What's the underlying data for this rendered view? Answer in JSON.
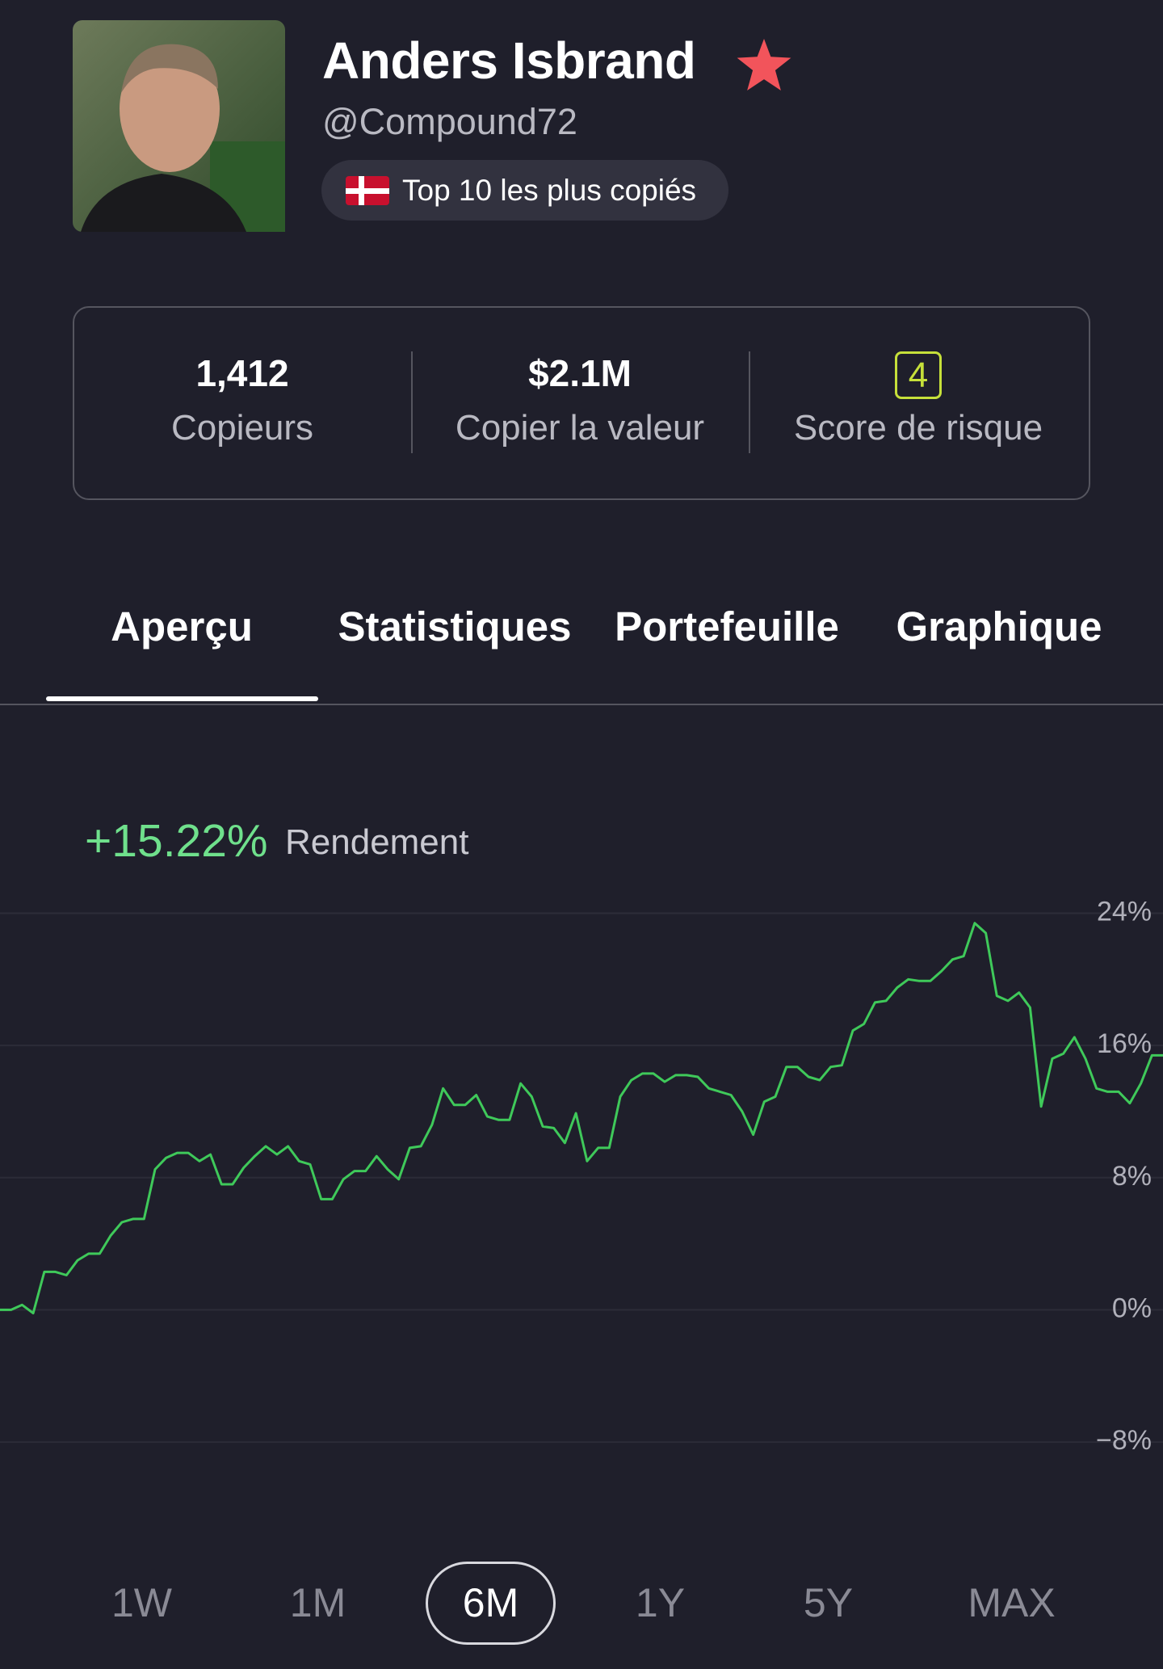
{
  "profile": {
    "name": "Anders Isbrand",
    "handle": "@Compound72",
    "badge": "Top 10 les plus copiés"
  },
  "stats": [
    {
      "value": "1,412",
      "label": "Copieurs"
    },
    {
      "value": "$2.1M",
      "label": "Copier la valeur"
    },
    {
      "value": "4",
      "label": "Score de risque"
    }
  ],
  "tabs": [
    "Aperçu",
    "Statistiques",
    "Portefeuille",
    "Graphique"
  ],
  "active_tab": 0,
  "chart_data": {
    "type": "line",
    "headline": "+15.22%",
    "headline_label": "Rendement",
    "ylim": [
      -10,
      25
    ],
    "yticks": [
      {
        "value": 24,
        "label": "24%"
      },
      {
        "value": 16,
        "label": "16%"
      },
      {
        "value": 8,
        "label": "8%"
      },
      {
        "value": 0,
        "label": "0%"
      },
      {
        "value": -8,
        "label": "−8%"
      }
    ],
    "grid": true,
    "series": [
      {
        "color": "#3fc95a",
        "values": [
          0,
          0,
          0.3,
          -0.2,
          2.3,
          2.3,
          2.1,
          3.0,
          3.4,
          3.4,
          4.5,
          5.3,
          5.5,
          5.5,
          8.5,
          9.2,
          9.5,
          9.5,
          9.0,
          9.4,
          7.6,
          7.6,
          8.6,
          9.3,
          9.9,
          9.4,
          9.9,
          9.0,
          8.8,
          6.7,
          6.7,
          7.9,
          8.4,
          8.4,
          9.3,
          8.5,
          7.9,
          9.8,
          9.9,
          11.2,
          13.4,
          12.4,
          12.4,
          13.0,
          11.7,
          11.5,
          11.5,
          13.7,
          12.9,
          11.1,
          11.0,
          10.1,
          11.9,
          9.0,
          9.8,
          9.8,
          12.9,
          13.9,
          14.3,
          14.3,
          13.8,
          14.2,
          14.2,
          14.1,
          13.4,
          13.2,
          13.0,
          12.0,
          10.6,
          12.6,
          12.9,
          14.7,
          14.7,
          14.1,
          13.9,
          14.7,
          14.8,
          16.9,
          17.3,
          18.6,
          18.7,
          19.5,
          20.0,
          19.9,
          19.9,
          20.5,
          21.2,
          21.4,
          23.4,
          22.8,
          19.0,
          18.7,
          19.2,
          18.3,
          12.3,
          15.2,
          15.5,
          16.5,
          15.2,
          13.4,
          13.2,
          13.2,
          12.5,
          13.7,
          15.4,
          15.4
        ]
      }
    ]
  },
  "ranges": [
    "1W",
    "1M",
    "6M",
    "1Y",
    "5Y",
    "MAX"
  ],
  "active_range": 2
}
